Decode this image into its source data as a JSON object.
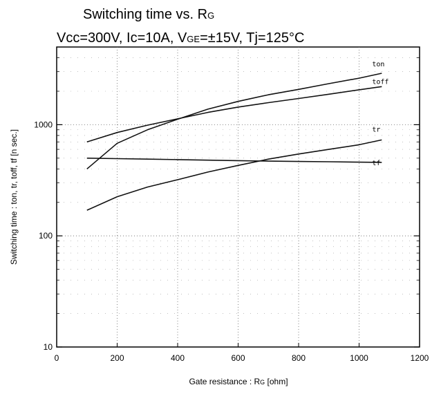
{
  "chart_data": {
    "type": "line",
    "title": "Switching time  vs.  RG",
    "title_main": "Switching time  vs.  R",
    "title_sub": "G",
    "subtitle_parts": [
      "Vcc=300V, Ic=10A, V",
      "GE",
      "=±15V, Tj=125°C"
    ],
    "xlabel_parts": [
      "Gate resistance  :  R",
      "G",
      " [ohm]"
    ],
    "ylabel": "Switching time  :  ton, tr, toff, tf  [n sec.]",
    "x_scale": "linear",
    "y_scale": "log",
    "xlim": [
      0,
      1200
    ],
    "ylim": [
      10,
      5000
    ],
    "x_ticks": [
      0,
      200,
      400,
      600,
      800,
      1000,
      1200
    ],
    "y_ticks": [
      10,
      100,
      1000
    ],
    "grid": true,
    "series": [
      {
        "name": "ton",
        "x": [
          100,
          200,
          300,
          400,
          500,
          600,
          700,
          800,
          900,
          1000,
          1075
        ],
        "y": [
          400,
          680,
          900,
          1120,
          1380,
          1620,
          1860,
          2080,
          2340,
          2620,
          2900
        ]
      },
      {
        "name": "toff",
        "x": [
          100,
          200,
          300,
          400,
          500,
          600,
          700,
          800,
          900,
          1000,
          1075
        ],
        "y": [
          700,
          850,
          990,
          1130,
          1290,
          1440,
          1580,
          1720,
          1880,
          2060,
          2200
        ]
      },
      {
        "name": "tr",
        "x": [
          100,
          200,
          300,
          400,
          500,
          600,
          700,
          800,
          900,
          1000,
          1075
        ],
        "y": [
          170,
          225,
          275,
          320,
          375,
          430,
          490,
          545,
          600,
          660,
          730
        ]
      },
      {
        "name": "tf",
        "x": [
          100,
          200,
          300,
          400,
          500,
          600,
          700,
          800,
          900,
          1000,
          1075
        ],
        "y": [
          500,
          495,
          490,
          485,
          480,
          475,
          470,
          467,
          464,
          460,
          458
        ]
      }
    ]
  }
}
